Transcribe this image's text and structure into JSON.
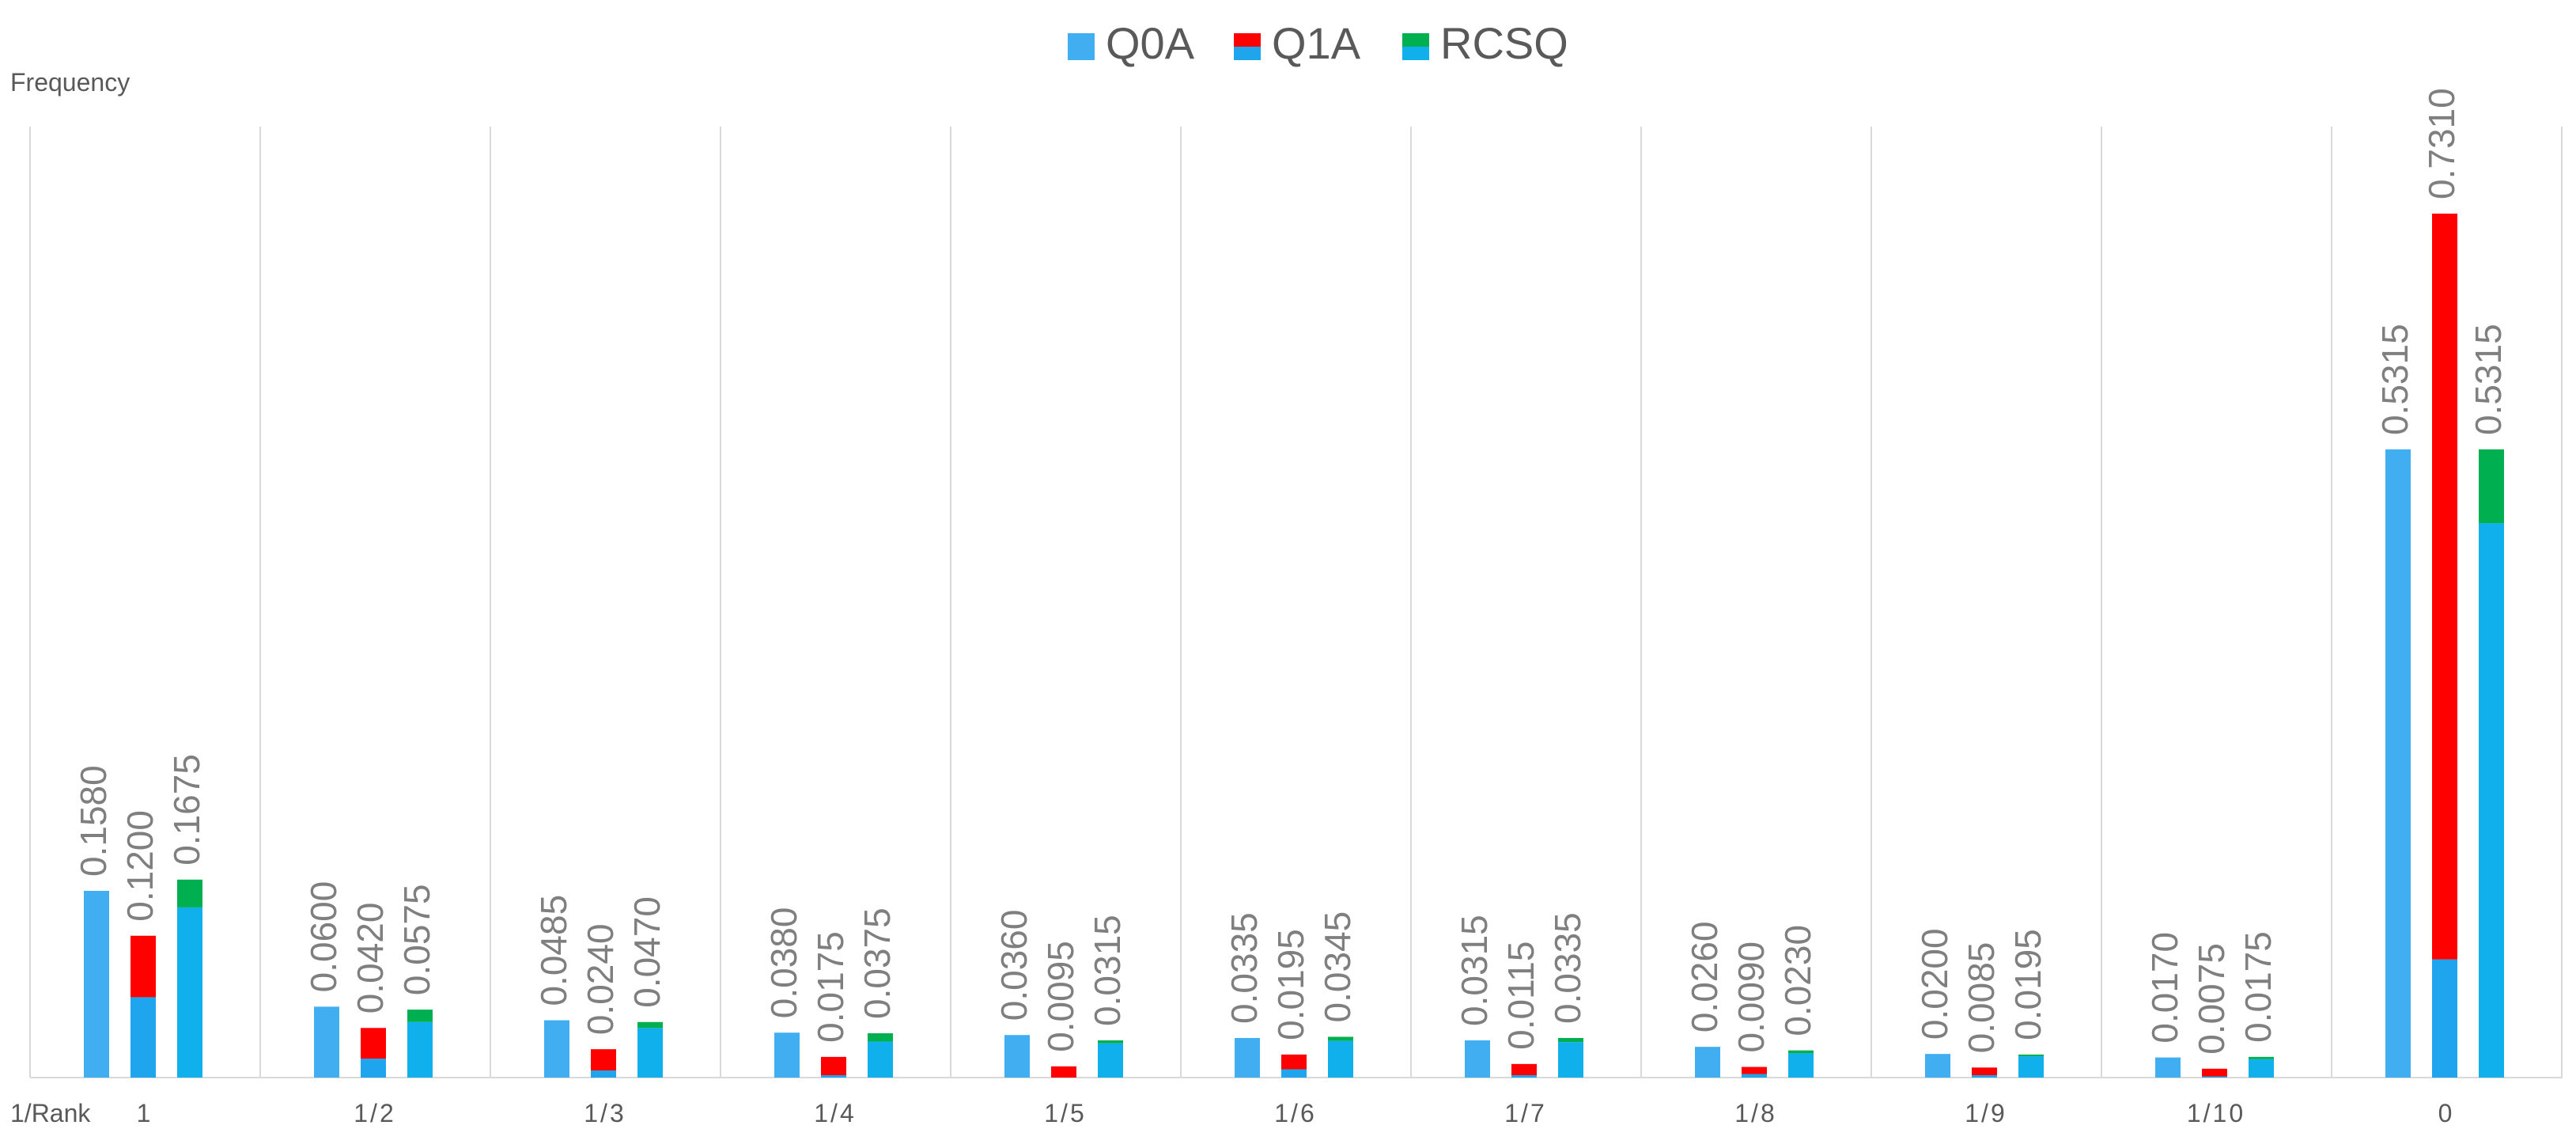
{
  "chart_data": {
    "type": "bar",
    "title": "",
    "ylabel": "Frequency",
    "xlabel": "1/Rank",
    "ylim": [
      0,
      0.8
    ],
    "grid": "vertical category separators",
    "legend_position": "top-center",
    "categories": [
      "1",
      "1/2",
      "1/3",
      "1/4",
      "1/5",
      "1/6",
      "1/7",
      "1/8",
      "1/9",
      "1/10",
      "0"
    ],
    "series": [
      {
        "name": "Q0A",
        "values": [
          0.158,
          0.06,
          0.0485,
          0.038,
          0.036,
          0.0335,
          0.0315,
          0.026,
          0.02,
          0.017,
          0.5315
        ],
        "labels": [
          "0.1580",
          "0.0600",
          "0.0485",
          "0.0380",
          "0.0360",
          "0.0335",
          "0.0315",
          "0.0260",
          "0.0200",
          "0.0170",
          "0.5315"
        ],
        "segments": [
          {
            "color": "#41aef2",
            "values": [
              0.158,
              0.06,
              0.0485,
              0.038,
              0.036,
              0.0335,
              0.0315,
              0.026,
              0.02,
              0.017,
              0.5315
            ]
          }
        ]
      },
      {
        "name": "Q1A",
        "values": [
          0.12,
          0.042,
          0.024,
          0.0175,
          0.0095,
          0.0195,
          0.0115,
          0.009,
          0.0085,
          0.0075,
          0.731
        ],
        "labels": [
          "0.1200",
          "0.0420",
          "0.0240",
          "0.0175",
          "0.0095",
          "0.0195",
          "0.0115",
          "0.0090",
          "0.0085",
          "0.0075",
          "0.7310"
        ],
        "segments": [
          {
            "color": "#1fa5ee",
            "values": [
              0.068,
              0.016,
              0.006,
              0.002,
              0.0,
              0.007,
              0.002,
              0.003,
              0.002,
              0.001,
              0.1
            ]
          },
          {
            "color": "#ff0000",
            "values": [
              0.052,
              0.026,
              0.018,
              0.0155,
              0.0095,
              0.0125,
              0.0095,
              0.006,
              0.0065,
              0.0065,
              0.631
            ]
          }
        ]
      },
      {
        "name": "RCSQ",
        "values": [
          0.1675,
          0.0575,
          0.047,
          0.0375,
          0.0315,
          0.0345,
          0.0335,
          0.023,
          0.0195,
          0.0175,
          0.5315
        ],
        "labels": [
          "0.1675",
          "0.0575",
          "0.0470",
          "0.0375",
          "0.0315",
          "0.0345",
          "0.0335",
          "0.0230",
          "0.0195",
          "0.0175",
          "0.5315"
        ],
        "segments": [
          {
            "color": "#0fb0ec",
            "values": [
              0.144,
              0.047,
              0.042,
              0.0305,
              0.029,
              0.031,
              0.03,
              0.0205,
              0.018,
              0.0155,
              0.469
            ]
          },
          {
            "color": "#00b050",
            "values": [
              0.0235,
              0.0105,
              0.005,
              0.007,
              0.0025,
              0.0035,
              0.0035,
              0.0025,
              0.0015,
              0.002,
              0.0625
            ]
          }
        ]
      }
    ],
    "legend": [
      {
        "name": "Q0A",
        "colors": [
          "#41aef2"
        ]
      },
      {
        "name": "Q1A",
        "colors": [
          "#ff0000",
          "#1fa5ee"
        ]
      },
      {
        "name": "RCSQ",
        "colors": [
          "#00b050",
          "#0fb0ec"
        ]
      }
    ],
    "colors": {
      "gridline": "#d9d9d9",
      "axis": "#d9d9d9",
      "label": "#7f7f7f",
      "axis_text": "#595959"
    }
  }
}
